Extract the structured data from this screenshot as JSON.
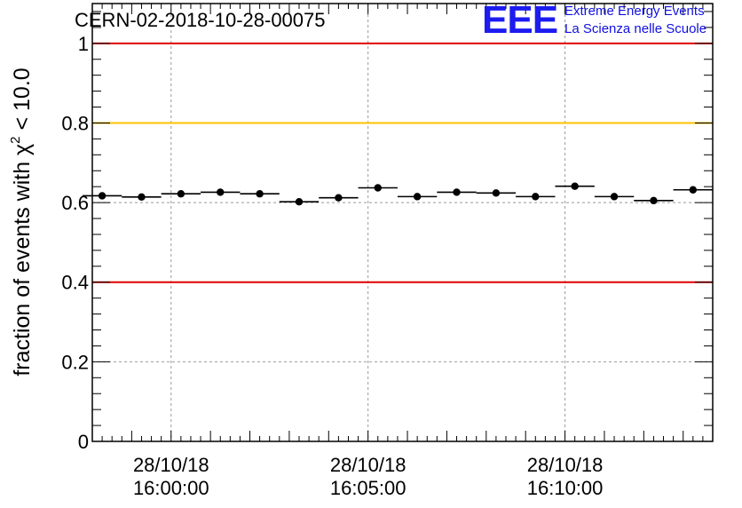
{
  "header": {
    "run_id": "CERN-02-2018-10-28-00075",
    "logo_mark": "EEE",
    "logo_line1": "Extreme Energy Events",
    "logo_line2": "La Scienza nelle Scuole"
  },
  "colors": {
    "limit_red": "#e00000",
    "limit_orange": "#ffc000",
    "logo_blue": "#1c1cf0",
    "grid": "#999999",
    "marker": "#000000"
  },
  "chart_data": {
    "type": "scatter",
    "title": "CERN-02-2018-10-28-00075",
    "ylabel_prefix": "fraction of events with ",
    "ylabel_chi": "χ",
    "ylabel_sup": "2",
    "ylabel_suffix": " < 10.0",
    "xlabel": "",
    "ylim": [
      0,
      1.1
    ],
    "xlim_minutes": [
      -2.0,
      13.75
    ],
    "yticks": [
      {
        "value": 0,
        "label": "0"
      },
      {
        "value": 0.2,
        "label": "0.2"
      },
      {
        "value": 0.4,
        "label": "0.4"
      },
      {
        "value": 0.6,
        "label": "0.6"
      },
      {
        "value": 0.8,
        "label": "0.8"
      },
      {
        "value": 1,
        "label": "1"
      }
    ],
    "xticks": [
      {
        "minute": 0,
        "date": "28/10/18",
        "time": "16:00:00"
      },
      {
        "minute": 5,
        "date": "28/10/18",
        "time": "16:05:00"
      },
      {
        "minute": 10,
        "date": "28/10/18",
        "time": "16:10:00"
      }
    ],
    "reference_lines": [
      {
        "value": 1.0,
        "color": "red"
      },
      {
        "value": 0.8,
        "color": "orange"
      },
      {
        "value": 0.4,
        "color": "red"
      }
    ],
    "bin_width_minutes": 1.0,
    "series": [
      {
        "name": "fraction",
        "x_minutes": [
          -1.75,
          -0.75,
          0.25,
          1.25,
          2.25,
          3.25,
          4.25,
          5.25,
          6.25,
          7.25,
          8.25,
          9.25,
          10.25,
          11.25,
          12.25,
          13.25
        ],
        "values": [
          0.617,
          0.614,
          0.622,
          0.626,
          0.622,
          0.602,
          0.612,
          0.637,
          0.615,
          0.626,
          0.624,
          0.615,
          0.641,
          0.615,
          0.605,
          0.632
        ]
      }
    ]
  }
}
